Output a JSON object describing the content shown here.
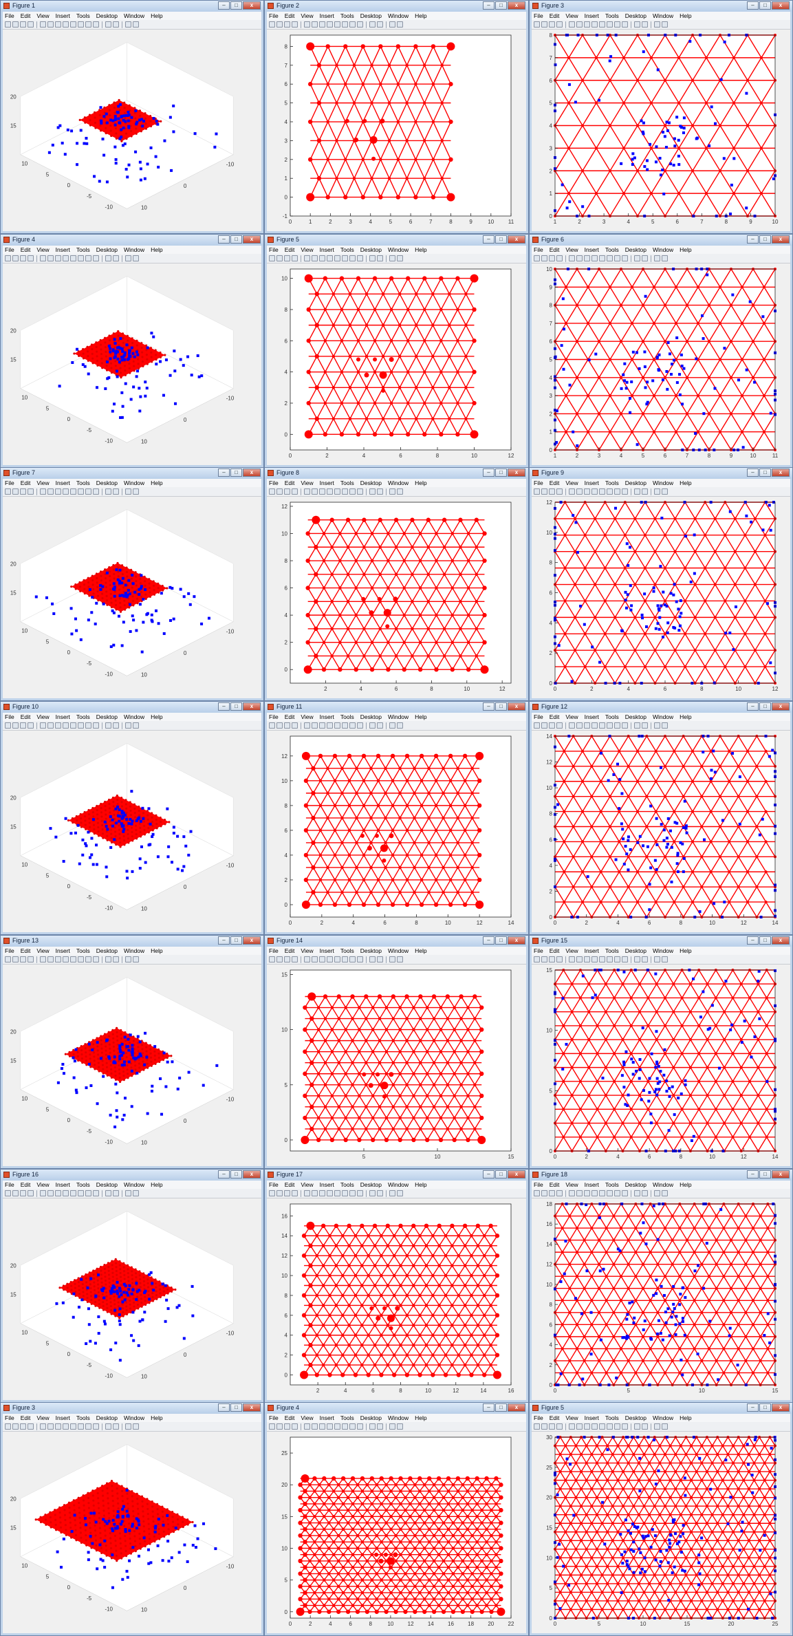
{
  "menu": [
    "File",
    "Edit",
    "View",
    "Insert",
    "Tools",
    "Desktop",
    "Window",
    "Help"
  ],
  "toolbar_icons": [
    "new-figure-icon",
    "open-icon",
    "save-icon",
    "print-icon",
    "arrow-icon",
    "zoom-in-icon",
    "zoom-out-icon",
    "pan-icon",
    "rotate-icon",
    "data-cursor-icon",
    "brush-icon",
    "link-icon",
    "colorbar-icon",
    "legend-icon",
    "hide-plot-tools-icon",
    "show-plot-tools-icon"
  ],
  "colors": {
    "lattice": "#ff0000",
    "points": "#0000ff",
    "axes_bg": "#ffffff"
  },
  "windows": [
    {
      "title": "Figure 1",
      "kind": "3d",
      "n": 8
    },
    {
      "title": "Figure 2",
      "kind": "lattice",
      "n": 8,
      "xlim": [
        0,
        11
      ],
      "ylim": [
        -1,
        8.6
      ],
      "xticks": [
        "0",
        "1",
        "2",
        "3",
        "4",
        "5",
        "6",
        "7",
        "8",
        "9",
        "10",
        "11"
      ],
      "yticks": [
        "-1",
        "0",
        "1",
        "2",
        "3",
        "4",
        "5",
        "6",
        "7",
        "8"
      ]
    },
    {
      "title": "Figure 3",
      "kind": "lattice_pts",
      "n": 8,
      "xlim": [
        1,
        10
      ],
      "ylim": [
        0,
        8
      ],
      "xticks": [
        "1",
        "2",
        "3",
        "4",
        "5",
        "6",
        "7",
        "8",
        "9",
        "10"
      ],
      "yticks": [
        "0",
        "1",
        "2",
        "3",
        "4",
        "5",
        "6",
        "7",
        "8"
      ]
    },
    {
      "title": "Figure 4",
      "kind": "3d",
      "n": 10
    },
    {
      "title": "Figure 5",
      "kind": "lattice",
      "n": 10,
      "xlim": [
        0,
        12
      ],
      "ylim": [
        -1,
        10.6
      ],
      "xticks": [
        "0",
        "2",
        "4",
        "6",
        "8",
        "10",
        "12"
      ],
      "yticks": [
        "0",
        "2",
        "4",
        "6",
        "8",
        "10"
      ]
    },
    {
      "title": "Figure 6",
      "kind": "lattice_pts",
      "n": 10,
      "xlim": [
        1,
        11
      ],
      "ylim": [
        0,
        10
      ],
      "xticks": [
        "1",
        "2",
        "3",
        "4",
        "5",
        "6",
        "7",
        "8",
        "9",
        "10",
        "11"
      ],
      "yticks": [
        "0",
        "1",
        "2",
        "3",
        "4",
        "5",
        "6",
        "7",
        "8",
        "9",
        "10"
      ]
    },
    {
      "title": "Figure 7",
      "kind": "3d",
      "n": 11
    },
    {
      "title": "Figure 8",
      "kind": "lattice",
      "n": 11,
      "xlim": [
        0,
        12.5
      ],
      "ylim": [
        -1,
        12.3
      ],
      "xticks": [
        "2",
        "4",
        "6",
        "8",
        "10",
        "12"
      ],
      "yticks": [
        "0",
        "2",
        "4",
        "6",
        "8",
        "10",
        "12"
      ]
    },
    {
      "title": "Figure 9",
      "kind": "lattice_pts",
      "n": 11,
      "xlim": [
        0,
        12
      ],
      "ylim": [
        0,
        12
      ],
      "xticks": [
        "0",
        "2",
        "4",
        "6",
        "8",
        "10",
        "12"
      ],
      "yticks": [
        "0",
        "2",
        "4",
        "6",
        "8",
        "10",
        "12"
      ]
    },
    {
      "title": "Figure 10",
      "kind": "3d",
      "n": 12
    },
    {
      "title": "Figure 11",
      "kind": "lattice",
      "n": 12,
      "xlim": [
        0,
        14
      ],
      "ylim": [
        -1,
        13.6
      ],
      "xticks": [
        "0",
        "2",
        "4",
        "6",
        "8",
        "10",
        "12",
        "14"
      ],
      "yticks": [
        "0",
        "2",
        "4",
        "6",
        "8",
        "10",
        "12"
      ]
    },
    {
      "title": "Figure 12",
      "kind": "lattice_pts",
      "n": 12,
      "xlim": [
        0,
        14
      ],
      "ylim": [
        0,
        14
      ],
      "xticks": [
        "0",
        "2",
        "4",
        "6",
        "8",
        "10",
        "12",
        "14"
      ],
      "yticks": [
        "0",
        "2",
        "4",
        "6",
        "8",
        "10",
        "12",
        "14"
      ]
    },
    {
      "title": "Figure 13",
      "kind": "3d",
      "n": 13
    },
    {
      "title": "Figure 14",
      "kind": "lattice",
      "n": 13,
      "xlim": [
        0,
        15
      ],
      "ylim": [
        -1,
        15.4
      ],
      "xticks": [
        "5",
        "10",
        "15"
      ],
      "yticks": [
        "0",
        "5",
        "10",
        "15"
      ]
    },
    {
      "title": "Figure 15",
      "kind": "lattice_pts",
      "n": 13,
      "xlim": [
        0,
        14
      ],
      "ylim": [
        0,
        15
      ],
      "xticks": [
        "0",
        "2",
        "4",
        "6",
        "8",
        "10",
        "12",
        "14"
      ],
      "yticks": [
        "0",
        "5",
        "10",
        "15"
      ]
    },
    {
      "title": "Figure 16",
      "kind": "3d",
      "n": 15
    },
    {
      "title": "Figure 17",
      "kind": "lattice",
      "n": 15,
      "xlim": [
        0,
        16
      ],
      "ylim": [
        -1,
        17.2
      ],
      "xticks": [
        "2",
        "4",
        "6",
        "8",
        "10",
        "12",
        "14",
        "16"
      ],
      "yticks": [
        "0",
        "2",
        "4",
        "6",
        "8",
        "10",
        "12",
        "14",
        "16"
      ]
    },
    {
      "title": "Figure 18",
      "kind": "lattice_pts",
      "n": 15,
      "xlim": [
        0,
        15
      ],
      "ylim": [
        0,
        18
      ],
      "xticks": [
        "0",
        "5",
        "10",
        "15"
      ],
      "yticks": [
        "0",
        "2",
        "4",
        "6",
        "8",
        "10",
        "12",
        "14",
        "16",
        "18"
      ]
    },
    {
      "title": "Figure 3",
      "kind": "3d",
      "n": 24
    },
    {
      "title": "Figure 4",
      "kind": "lattice",
      "n": 21,
      "xlim": [
        0,
        22
      ],
      "ylim": [
        -1,
        27.5
      ],
      "xticks": [
        "0",
        "2",
        "4",
        "6",
        "8",
        "10",
        "12",
        "14",
        "16",
        "18",
        "20",
        "22"
      ],
      "yticks": [
        "0",
        "5",
        "10",
        "15",
        "20",
        "25"
      ]
    },
    {
      "title": "Figure 5",
      "kind": "lattice_pts",
      "n": 21,
      "xlim": [
        0,
        25
      ],
      "ylim": [
        0,
        30
      ],
      "xticks": [
        "0",
        "5",
        "10",
        "15",
        "20",
        "25"
      ],
      "yticks": [
        "0",
        "5",
        "10",
        "15",
        "20",
        "25",
        "30"
      ]
    }
  ]
}
